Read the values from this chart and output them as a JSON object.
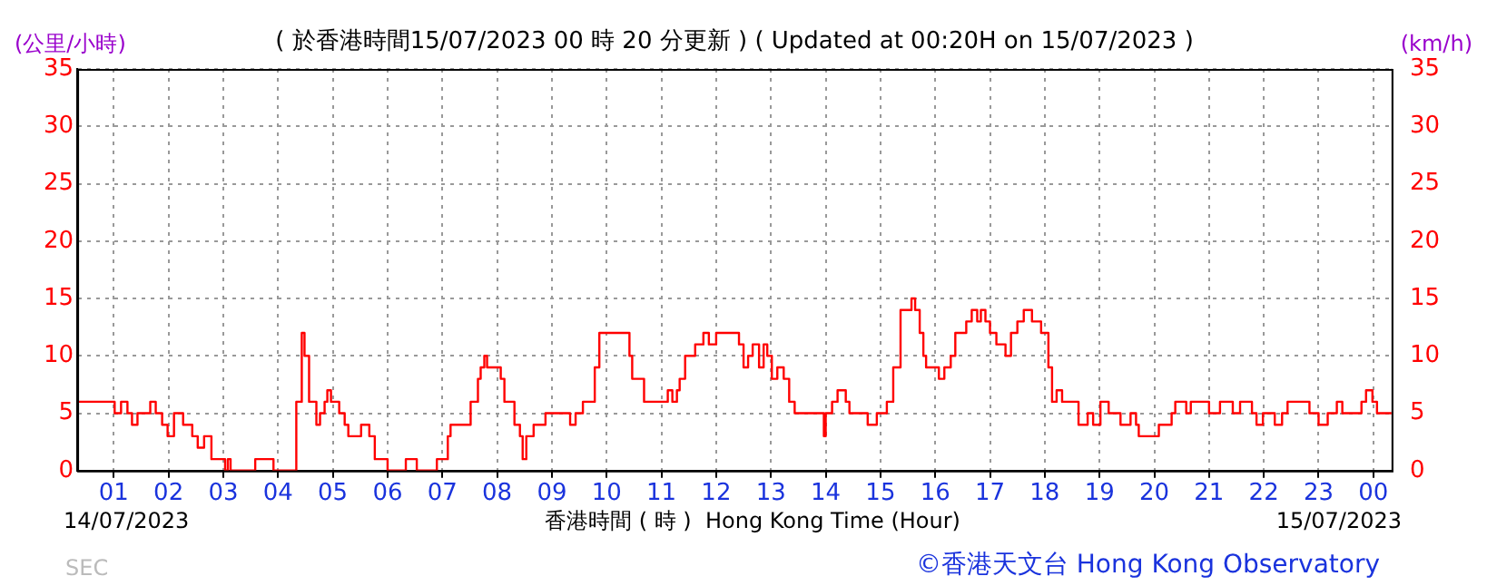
{
  "chart_data": {
    "type": "step",
    "title": "( 於香港時間15/07/2023 00 時 20 分更新 ) ( Updated at 00:20H on 15/07/2023 )",
    "xlabel": "香港時間 ( 時 )  Hong Kong Time (Hour)",
    "ylabel": "(公里/小時)",
    "y2label": "(km/h)",
    "annotations": [
      "14/07/2023",
      "15/07/2023",
      "©香港天文台 Hong Kong Observatory",
      "SEC"
    ],
    "x": [
      "2023-07-14T00:20",
      "2023-07-14T01:01",
      "2023-07-14T01:08",
      "2023-07-14T01:15",
      "2023-07-14T01:20",
      "2023-07-14T01:26",
      "2023-07-14T01:40",
      "2023-07-14T01:46",
      "2023-07-14T01:53",
      "2023-07-14T01:59",
      "2023-07-14T02:06",
      "2023-07-14T02:16",
      "2023-07-14T02:26",
      "2023-07-14T02:32",
      "2023-07-14T02:39",
      "2023-07-14T02:47",
      "2023-07-14T03:02",
      "2023-07-14T03:05",
      "2023-07-14T03:08",
      "2023-07-14T03:35",
      "2023-07-14T03:55",
      "2023-07-14T04:20",
      "2023-07-14T04:26",
      "2023-07-14T04:29",
      "2023-07-14T04:34",
      "2023-07-14T04:42",
      "2023-07-14T04:46",
      "2023-07-14T04:51",
      "2023-07-14T04:54",
      "2023-07-14T04:58",
      "2023-07-14T05:07",
      "2023-07-14T05:13",
      "2023-07-14T05:17",
      "2023-07-14T05:31",
      "2023-07-14T05:40",
      "2023-07-14T05:46",
      "2023-07-14T06:00",
      "2023-07-14T06:20",
      "2023-07-14T06:32",
      "2023-07-14T06:54",
      "2023-07-14T07:06",
      "2023-07-14T07:09",
      "2023-07-14T07:31",
      "2023-07-14T07:39",
      "2023-07-14T07:42",
      "2023-07-14T07:46",
      "2023-07-14T07:49",
      "2023-07-14T08:04",
      "2023-07-14T08:08",
      "2023-07-14T08:19",
      "2023-07-14T08:25",
      "2023-07-14T08:28",
      "2023-07-14T08:32",
      "2023-07-14T08:40",
      "2023-07-14T08:53",
      "2023-07-14T09:20",
      "2023-07-14T09:26",
      "2023-07-14T09:34",
      "2023-07-14T09:47",
      "2023-07-14T09:52",
      "2023-07-14T10:25",
      "2023-07-14T10:28",
      "2023-07-14T10:41",
      "2023-07-14T11:07",
      "2023-07-14T11:12",
      "2023-07-14T11:17",
      "2023-07-14T11:20",
      "2023-07-14T11:26",
      "2023-07-14T11:37",
      "2023-07-14T11:46",
      "2023-07-14T11:52",
      "2023-07-14T12:00",
      "2023-07-14T12:25",
      "2023-07-14T12:30",
      "2023-07-14T12:35",
      "2023-07-14T12:40",
      "2023-07-14T12:47",
      "2023-07-14T12:52",
      "2023-07-14T12:56",
      "2023-07-14T13:01",
      "2023-07-14T13:07",
      "2023-07-14T13:14",
      "2023-07-14T13:20",
      "2023-07-14T13:26",
      "2023-07-14T13:58",
      "2023-07-14T14:00",
      "2023-07-14T14:07",
      "2023-07-14T14:13",
      "2023-07-14T14:22",
      "2023-07-14T14:26",
      "2023-07-14T14:46",
      "2023-07-14T14:56",
      "2023-07-14T15:07",
      "2023-07-14T15:14",
      "2023-07-14T15:22",
      "2023-07-14T15:34",
      "2023-07-14T15:38",
      "2023-07-14T15:43",
      "2023-07-14T15:47",
      "2023-07-14T15:50",
      "2023-07-14T16:04",
      "2023-07-14T16:10",
      "2023-07-14T16:17",
      "2023-07-14T16:22",
      "2023-07-14T16:34",
      "2023-07-14T16:40",
      "2023-07-14T16:46",
      "2023-07-14T16:50",
      "2023-07-14T16:55",
      "2023-07-14T17:00",
      "2023-07-14T17:07",
      "2023-07-14T17:17",
      "2023-07-14T17:23",
      "2023-07-14T17:30",
      "2023-07-14T17:37",
      "2023-07-14T17:46",
      "2023-07-14T17:56",
      "2023-07-14T18:04",
      "2023-07-14T18:08",
      "2023-07-14T18:13",
      "2023-07-14T18:19",
      "2023-07-14T18:37",
      "2023-07-14T18:47",
      "2023-07-14T18:53",
      "2023-07-14T19:01",
      "2023-07-14T19:10",
      "2023-07-14T19:23",
      "2023-07-14T19:34",
      "2023-07-14T19:40",
      "2023-07-14T19:43",
      "2023-07-14T20:05",
      "2023-07-14T20:19",
      "2023-07-14T20:23",
      "2023-07-14T20:35",
      "2023-07-14T20:40",
      "2023-07-14T21:00",
      "2023-07-14T21:12",
      "2023-07-14T21:26",
      "2023-07-14T21:34",
      "2023-07-14T21:47",
      "2023-07-14T21:52",
      "2023-07-14T21:59",
      "2023-07-14T22:12",
      "2023-07-14T22:20",
      "2023-07-14T22:26",
      "2023-07-14T22:50",
      "2023-07-14T23:00",
      "2023-07-14T23:10",
      "2023-07-14T23:20",
      "2023-07-14T23:26",
      "2023-07-14T23:47",
      "2023-07-14T23:52",
      "2023-07-14T23:59",
      "2023-07-15T00:04",
      "2023-07-15T00:20"
    ],
    "series": [
      {
        "color": "#ff0000",
        "values": [
          6,
          5,
          6,
          5,
          4,
          5,
          6,
          5,
          4,
          3,
          5,
          4,
          3,
          2,
          3,
          1,
          0,
          1,
          0,
          1,
          0,
          6,
          12,
          10,
          6,
          4,
          5,
          6,
          7,
          6,
          5,
          4,
          3,
          4,
          3,
          1,
          0,
          1,
          0,
          1,
          3,
          4,
          6,
          8,
          9,
          10,
          9,
          8,
          6,
          4,
          3,
          1,
          3,
          4,
          5,
          4,
          5,
          6,
          9,
          12,
          10,
          8,
          6,
          7,
          6,
          7,
          8,
          10,
          11,
          12,
          11,
          12,
          11,
          9,
          10,
          11,
          9,
          11,
          10,
          8,
          9,
          8,
          6,
          5,
          3,
          5,
          6,
          7,
          6,
          5,
          4,
          5,
          6,
          9,
          14,
          15,
          14,
          12,
          10,
          9,
          8,
          9,
          10,
          12,
          13,
          14,
          13,
          14,
          13,
          12,
          11,
          10,
          12,
          13,
          14,
          13,
          12,
          9,
          6,
          7,
          6,
          4,
          5,
          4,
          6,
          5,
          4,
          5,
          4,
          3,
          4,
          5,
          6,
          5,
          6,
          5,
          6,
          5,
          6,
          5,
          4,
          5,
          4,
          5,
          6,
          5,
          4,
          5,
          6,
          5,
          6,
          7,
          6,
          5,
          5
        ]
      }
    ],
    "xlim": [
      "2023-07-14T00:20",
      "2023-07-15T00:20"
    ],
    "xticks": [
      {
        "value": "2023-07-14T01:00",
        "label": "01"
      },
      {
        "value": "2023-07-14T02:00",
        "label": "02"
      },
      {
        "value": "2023-07-14T03:00",
        "label": "03"
      },
      {
        "value": "2023-07-14T04:00",
        "label": "04"
      },
      {
        "value": "2023-07-14T05:00",
        "label": "05"
      },
      {
        "value": "2023-07-14T06:00",
        "label": "06"
      },
      {
        "value": "2023-07-14T07:00",
        "label": "07"
      },
      {
        "value": "2023-07-14T08:00",
        "label": "08"
      },
      {
        "value": "2023-07-14T09:00",
        "label": "09"
      },
      {
        "value": "2023-07-14T10:00",
        "label": "10"
      },
      {
        "value": "2023-07-14T11:00",
        "label": "11"
      },
      {
        "value": "2023-07-14T12:00",
        "label": "12"
      },
      {
        "value": "2023-07-14T13:00",
        "label": "13"
      },
      {
        "value": "2023-07-14T14:00",
        "label": "14"
      },
      {
        "value": "2023-07-14T15:00",
        "label": "15"
      },
      {
        "value": "2023-07-14T16:00",
        "label": "16"
      },
      {
        "value": "2023-07-14T17:00",
        "label": "17"
      },
      {
        "value": "2023-07-14T18:00",
        "label": "18"
      },
      {
        "value": "2023-07-14T19:00",
        "label": "19"
      },
      {
        "value": "2023-07-14T20:00",
        "label": "20"
      },
      {
        "value": "2023-07-14T21:00",
        "label": "21"
      },
      {
        "value": "2023-07-14T22:00",
        "label": "22"
      },
      {
        "value": "2023-07-14T23:00",
        "label": "23"
      },
      {
        "value": "2023-07-15T00:00",
        "label": "00"
      }
    ],
    "ylim": [
      0,
      35
    ],
    "yticks": [
      0,
      5,
      10,
      15,
      20,
      25,
      30,
      35
    ],
    "y2lim": [
      0,
      35
    ],
    "y2ticks": [
      0,
      5,
      10,
      15,
      20,
      25,
      30,
      35
    ],
    "grid": true
  }
}
